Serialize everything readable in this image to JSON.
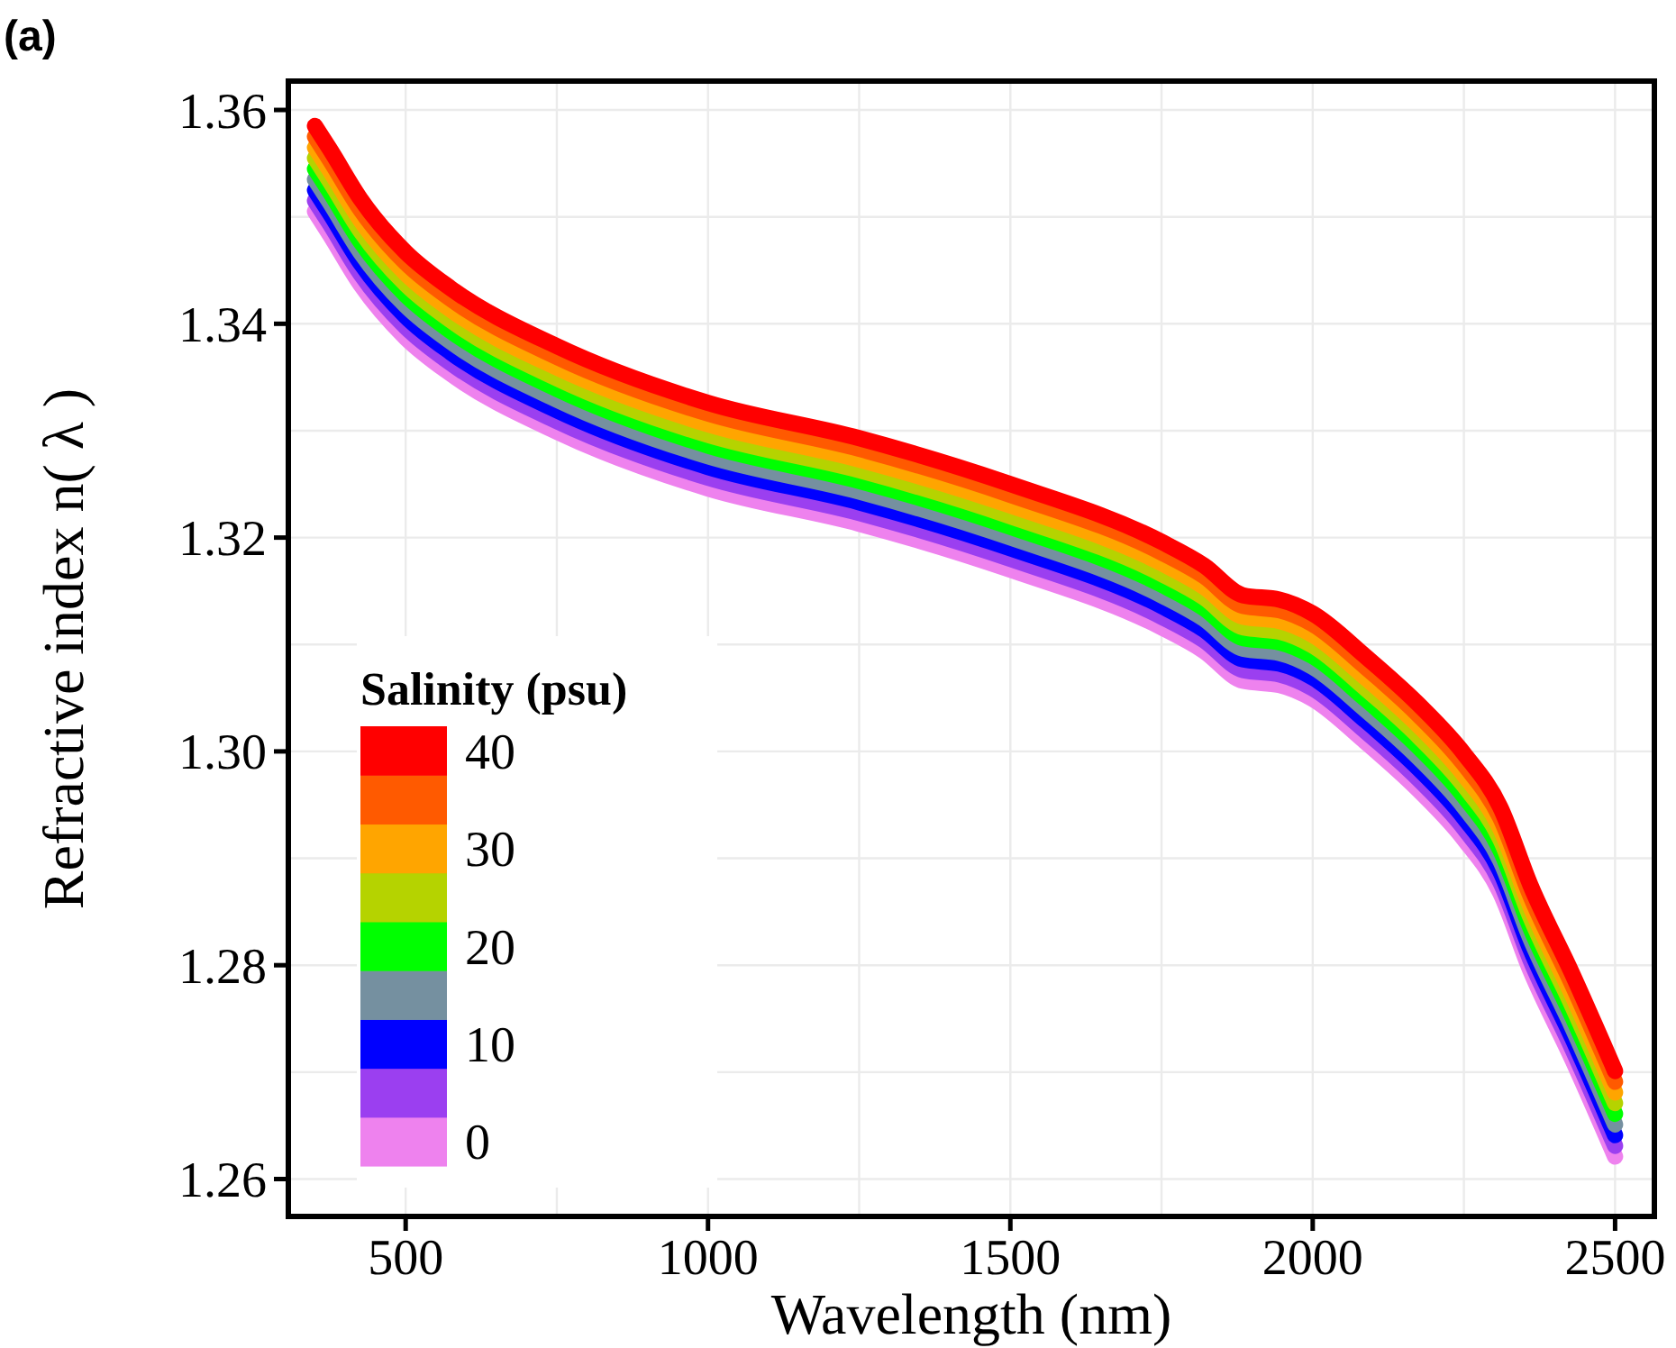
{
  "chart_data": {
    "type": "line",
    "annotations": [
      "(a)"
    ],
    "xlabel": "Wavelength (nm)",
    "ylabel": "Refractive index n( λ )",
    "x": [
      350,
      375,
      425,
      500,
      575,
      750,
      1000,
      1250,
      1500,
      1750,
      1820,
      1885,
      1945,
      2000,
      2085,
      2175,
      2250,
      2310,
      2360,
      2430,
      2500
    ],
    "series": [
      {
        "name": "0",
        "color": "#ee82ee",
        "values": [
          1.3505,
          1.3483,
          1.3437,
          1.3387,
          1.3353,
          1.3299,
          1.3246,
          1.3213,
          1.317,
          1.3116,
          1.3094,
          1.3066,
          1.3062,
          1.3049,
          1.301,
          1.2964,
          1.2918,
          1.2868,
          1.2795,
          1.2711,
          1.2621
        ]
      },
      {
        "color": "#9b3ff0",
        "values": [
          1.3515,
          1.3493,
          1.3447,
          1.3397,
          1.3363,
          1.3309,
          1.3256,
          1.3223,
          1.318,
          1.3126,
          1.3104,
          1.3076,
          1.3072,
          1.3059,
          1.302,
          1.2974,
          1.2928,
          1.2878,
          1.2805,
          1.2721,
          1.2631
        ]
      },
      {
        "name": "10",
        "color": "#0000ff",
        "values": [
          1.3525,
          1.3503,
          1.3457,
          1.3407,
          1.3373,
          1.3319,
          1.3266,
          1.3233,
          1.319,
          1.3136,
          1.3114,
          1.3086,
          1.3082,
          1.3069,
          1.303,
          1.2984,
          1.2938,
          1.2888,
          1.2815,
          1.2731,
          1.2641
        ]
      },
      {
        "color": "#7590a0",
        "values": [
          1.3535,
          1.3513,
          1.3467,
          1.3417,
          1.3383,
          1.3329,
          1.3276,
          1.3243,
          1.32,
          1.3146,
          1.3124,
          1.3096,
          1.3092,
          1.3079,
          1.304,
          1.2994,
          1.2948,
          1.2898,
          1.2825,
          1.2741,
          1.2651
        ]
      },
      {
        "name": "20",
        "color": "#00ff00",
        "values": [
          1.3545,
          1.3523,
          1.3477,
          1.3427,
          1.3393,
          1.3339,
          1.3286,
          1.3253,
          1.321,
          1.3156,
          1.3134,
          1.3106,
          1.3102,
          1.3089,
          1.305,
          1.3004,
          1.2958,
          1.2908,
          1.2835,
          1.2751,
          1.2661
        ]
      },
      {
        "color": "#b5d300",
        "values": [
          1.3555,
          1.3533,
          1.3487,
          1.3437,
          1.3403,
          1.3349,
          1.3296,
          1.3263,
          1.322,
          1.3166,
          1.3144,
          1.3116,
          1.3112,
          1.3099,
          1.306,
          1.3014,
          1.2968,
          1.2918,
          1.2845,
          1.2761,
          1.2671
        ]
      },
      {
        "name": "30",
        "color": "#ffa500",
        "values": [
          1.3565,
          1.3543,
          1.3497,
          1.3447,
          1.3413,
          1.3359,
          1.3306,
          1.3273,
          1.323,
          1.3176,
          1.3154,
          1.3126,
          1.3122,
          1.3109,
          1.307,
          1.3024,
          1.2978,
          1.2928,
          1.2855,
          1.2771,
          1.2681
        ]
      },
      {
        "color": "#ff5a00",
        "values": [
          1.3575,
          1.3553,
          1.3507,
          1.3457,
          1.3423,
          1.3369,
          1.3316,
          1.3283,
          1.324,
          1.3186,
          1.3164,
          1.3136,
          1.3132,
          1.3119,
          1.308,
          1.3034,
          1.2988,
          1.2938,
          1.2865,
          1.2781,
          1.2691
        ]
      },
      {
        "name": "40",
        "color": "#ff0000",
        "values": [
          1.3585,
          1.3563,
          1.3517,
          1.3467,
          1.3433,
          1.3379,
          1.3326,
          1.3293,
          1.325,
          1.3196,
          1.3174,
          1.3146,
          1.3142,
          1.3129,
          1.309,
          1.3044,
          1.2998,
          1.2948,
          1.2875,
          1.2791,
          1.2701
        ]
      }
    ],
    "xlim": [
      306,
      2565
    ],
    "ylim": [
      1.2565,
      1.3627
    ],
    "xticks": [
      500,
      1000,
      1500,
      2000,
      2500
    ],
    "yticks": [
      {
        "value": 1.26,
        "label": "1.26"
      },
      {
        "value": 1.28,
        "label": "1.28"
      },
      {
        "value": 1.3,
        "label": "1.30"
      },
      {
        "value": 1.32,
        "label": "1.32"
      },
      {
        "value": 1.34,
        "label": "1.34"
      },
      {
        "value": 1.36,
        "label": "1.36"
      }
    ],
    "grid": true,
    "legend_title": "Salinity (psu)",
    "legend": "bottom left",
    "line_style": "solid"
  }
}
